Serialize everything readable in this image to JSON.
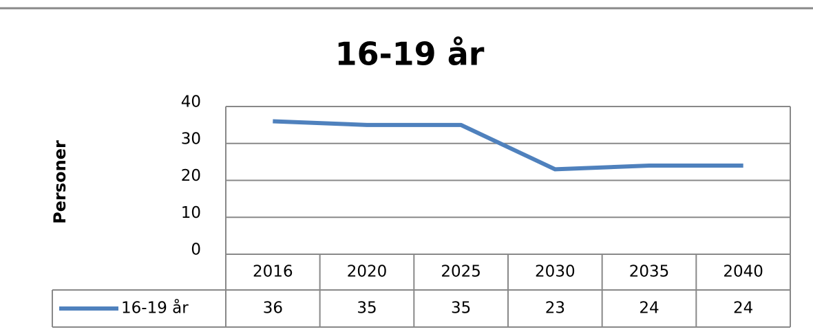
{
  "chart_data": {
    "type": "line",
    "title": "16-19 år",
    "y_label": "Personer",
    "categories": [
      "2016",
      "2020",
      "2025",
      "2030",
      "2035",
      "2040"
    ],
    "series": [
      {
        "name": "16-19 år",
        "color": "#4f81bd",
        "values": [
          36,
          35,
          35,
          23,
          24,
          24
        ]
      }
    ],
    "ylim": [
      0,
      40
    ],
    "yticks": [
      0,
      10,
      20,
      30,
      40
    ],
    "grid": true,
    "data_table": true
  }
}
